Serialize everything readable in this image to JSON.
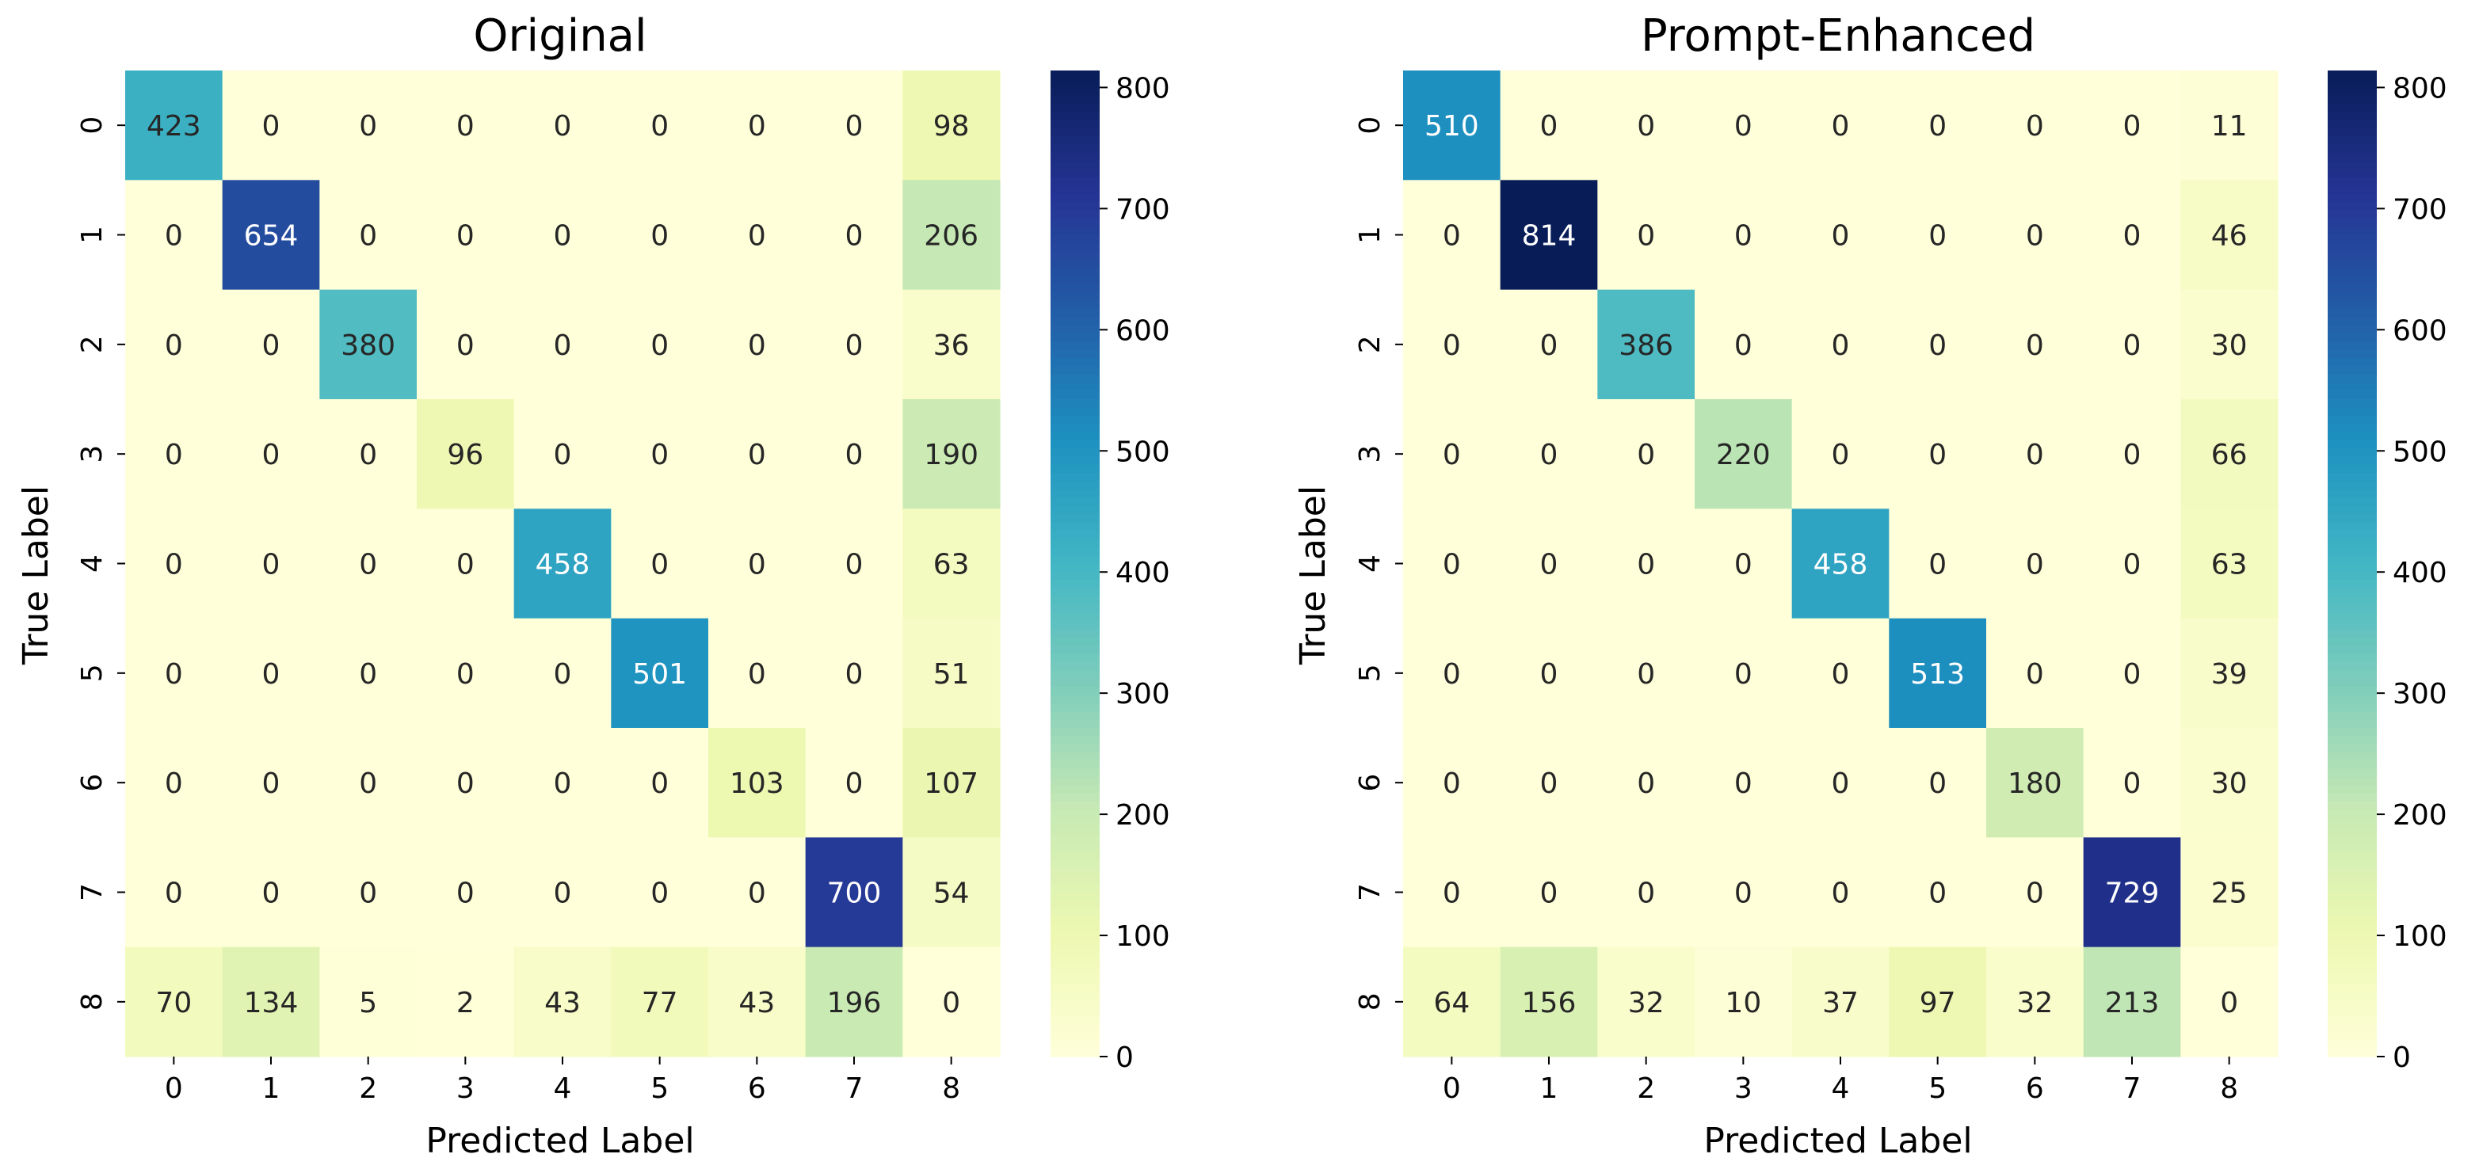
{
  "chart_data": [
    {
      "type": "heatmap",
      "title": "Original",
      "xlabel": "Predicted Label",
      "ylabel": "True Label",
      "x_tick_labels": [
        "0",
        "1",
        "2",
        "3",
        "4",
        "5",
        "6",
        "7",
        "8"
      ],
      "y_tick_labels": [
        "0",
        "1",
        "2",
        "3",
        "4",
        "5",
        "6",
        "7",
        "8"
      ],
      "colormap": "YlGnBu",
      "colorbar_range": [
        0,
        814
      ],
      "colorbar_ticks": [
        0,
        100,
        200,
        300,
        400,
        500,
        600,
        700,
        800
      ],
      "matrix": [
        [
          423,
          0,
          0,
          0,
          0,
          0,
          0,
          0,
          98
        ],
        [
          0,
          654,
          0,
          0,
          0,
          0,
          0,
          0,
          206
        ],
        [
          0,
          0,
          380,
          0,
          0,
          0,
          0,
          0,
          36
        ],
        [
          0,
          0,
          0,
          96,
          0,
          0,
          0,
          0,
          190
        ],
        [
          0,
          0,
          0,
          0,
          458,
          0,
          0,
          0,
          63
        ],
        [
          0,
          0,
          0,
          0,
          0,
          501,
          0,
          0,
          51
        ],
        [
          0,
          0,
          0,
          0,
          0,
          0,
          103,
          0,
          107
        ],
        [
          0,
          0,
          0,
          0,
          0,
          0,
          0,
          700,
          54
        ],
        [
          70,
          134,
          5,
          2,
          43,
          77,
          43,
          196,
          0
        ]
      ]
    },
    {
      "type": "heatmap",
      "title": "Prompt-Enhanced",
      "xlabel": "Predicted Label",
      "ylabel": "True Label",
      "x_tick_labels": [
        "0",
        "1",
        "2",
        "3",
        "4",
        "5",
        "6",
        "7",
        "8"
      ],
      "y_tick_labels": [
        "0",
        "1",
        "2",
        "3",
        "4",
        "5",
        "6",
        "7",
        "8"
      ],
      "colormap": "YlGnBu",
      "colorbar_range": [
        0,
        814
      ],
      "colorbar_ticks": [
        0,
        100,
        200,
        300,
        400,
        500,
        600,
        700,
        800
      ],
      "matrix": [
        [
          510,
          0,
          0,
          0,
          0,
          0,
          0,
          0,
          11
        ],
        [
          0,
          814,
          0,
          0,
          0,
          0,
          0,
          0,
          46
        ],
        [
          0,
          0,
          386,
          0,
          0,
          0,
          0,
          0,
          30
        ],
        [
          0,
          0,
          0,
          220,
          0,
          0,
          0,
          0,
          66
        ],
        [
          0,
          0,
          0,
          0,
          458,
          0,
          0,
          0,
          63
        ],
        [
          0,
          0,
          0,
          0,
          0,
          513,
          0,
          0,
          39
        ],
        [
          0,
          0,
          0,
          0,
          0,
          0,
          180,
          0,
          30
        ],
        [
          0,
          0,
          0,
          0,
          0,
          0,
          0,
          729,
          25
        ],
        [
          64,
          156,
          32,
          10,
          37,
          97,
          32,
          213,
          0
        ]
      ]
    }
  ]
}
